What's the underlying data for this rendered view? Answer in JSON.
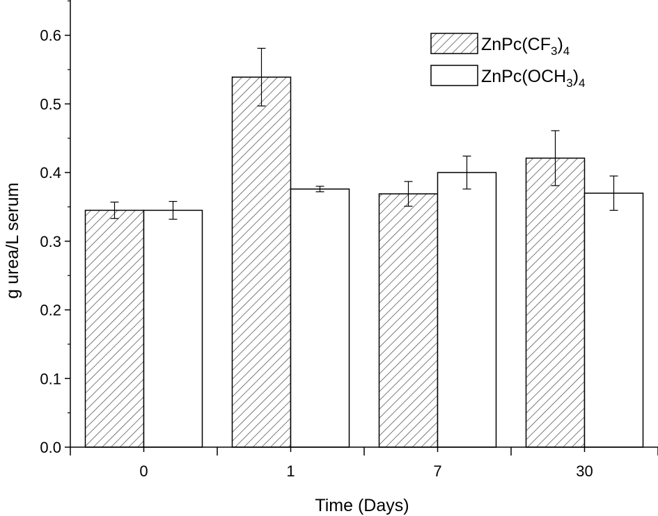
{
  "chart_data": {
    "type": "bar",
    "title": "",
    "xlabel": "Time (Days)",
    "ylabel": "g urea/L serum",
    "categories": [
      "0",
      "1",
      "7",
      "30"
    ],
    "ylim": [
      0,
      0.65
    ],
    "yticks": [
      "0.0",
      "0.1",
      "0.2",
      "0.3",
      "0.4",
      "0.5",
      "0.6"
    ],
    "legend_position": "top-right",
    "series": [
      {
        "name": "ZnPc(CF3)4",
        "name_parts": {
          "main": "ZnPc(CF",
          "sub1": "3",
          "close": ")",
          "sub2": "4"
        },
        "fill": "hatched",
        "values": [
          0.345,
          0.539,
          0.369,
          0.421
        ],
        "errors": [
          0.012,
          0.042,
          0.018,
          0.04
        ]
      },
      {
        "name": "ZnPc(OCH3)4",
        "name_parts": {
          "main": "ZnPc(OCH",
          "sub1": "3",
          "close": ")",
          "sub2": "4"
        },
        "fill": "white",
        "values": [
          0.345,
          0.376,
          0.4,
          0.37
        ],
        "errors": [
          0.013,
          0.004,
          0.024,
          0.025
        ]
      }
    ]
  }
}
